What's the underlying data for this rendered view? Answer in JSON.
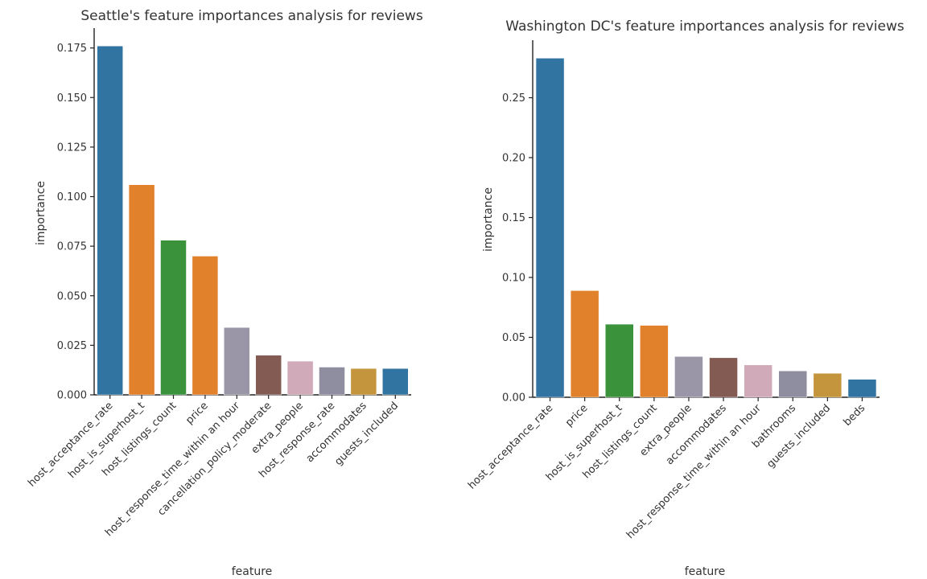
{
  "chart_data": [
    {
      "type": "bar",
      "title": "Seattle's feature importances analysis for reviews",
      "xlabel": "feature",
      "ylabel": "importance",
      "ylim": [
        0,
        0.185
      ],
      "yticks": [
        "0.000",
        "0.025",
        "0.050",
        "0.075",
        "0.100",
        "0.125",
        "0.150",
        "0.175"
      ],
      "categories": [
        "host_acceptance_rate",
        "host_is_superhost_t",
        "host_listings_count",
        "price",
        "host_response_time_within an hour",
        "cancellation_policy_moderate",
        "extra_people",
        "host_response_rate",
        "accommodates",
        "guests_included"
      ],
      "values": [
        0.176,
        0.106,
        0.078,
        0.07,
        0.034,
        0.02,
        0.017,
        0.014,
        0.0133,
        0.0133
      ],
      "colors": [
        "#3274a1",
        "#e1812c",
        "#3a923a",
        "#e1812c",
        "#9b95a8",
        "#845b53",
        "#d0aab9",
        "#8e8ea0",
        "#c4953c",
        "#3274a1"
      ],
      "grid": false,
      "legend": "none"
    },
    {
      "type": "bar",
      "title": "Washington DC's feature importances analysis for reviews",
      "xlabel": "feature",
      "ylabel": "importance",
      "ylim": [
        0,
        0.298
      ],
      "yticks": [
        "0.00",
        "0.05",
        "0.10",
        "0.15",
        "0.20",
        "0.25"
      ],
      "categories": [
        "host_acceptance_rate",
        "price",
        "host_is_superhost_t",
        "host_listings_count",
        "extra_people",
        "accommodates",
        "host_response_time_within an hour",
        "bathrooms",
        "guests_included",
        "beds"
      ],
      "values": [
        0.283,
        0.089,
        0.061,
        0.06,
        0.034,
        0.033,
        0.027,
        0.022,
        0.02,
        0.015
      ],
      "colors": [
        "#3274a1",
        "#e1812c",
        "#3a923a",
        "#e1812c",
        "#9b95a8",
        "#845b53",
        "#d0aab9",
        "#8e8ea0",
        "#c4953c",
        "#3274a1"
      ],
      "grid": false,
      "legend": "none"
    }
  ]
}
